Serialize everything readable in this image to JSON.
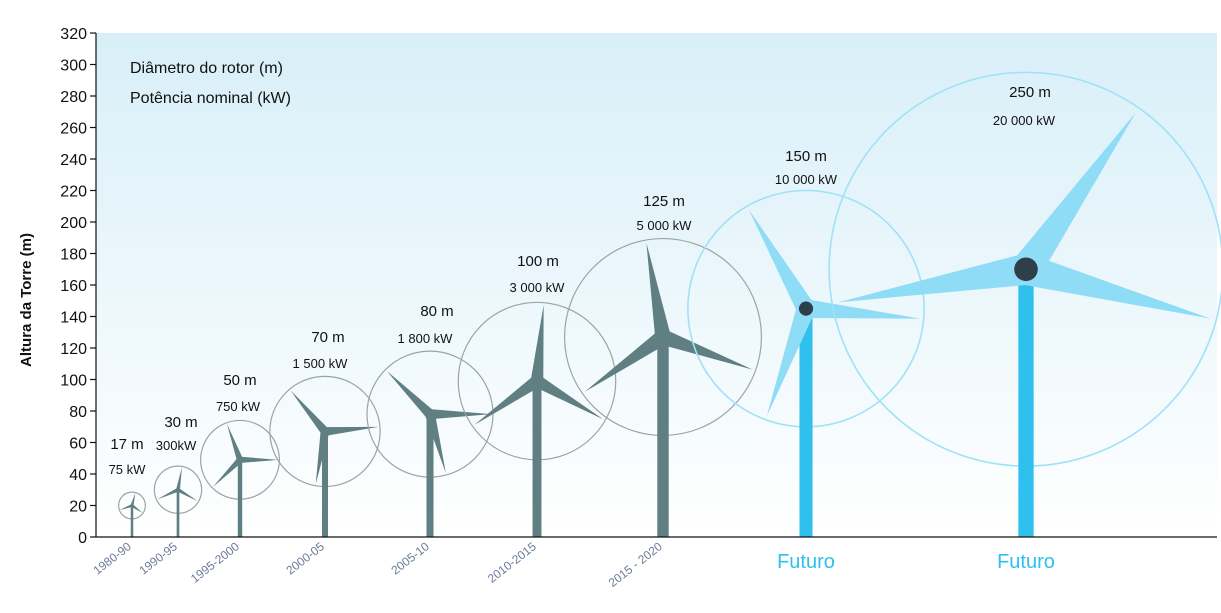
{
  "chart_data": {
    "type": "scatter",
    "legend": [
      "Diâmetro do rotor (m)",
      "Potência nominal (kW)"
    ],
    "ylabel": "Altura da Torre (m)",
    "ylim": [
      0,
      320
    ],
    "yticks": [
      0,
      20,
      40,
      60,
      80,
      100,
      120,
      140,
      160,
      180,
      200,
      220,
      240,
      260,
      280,
      300,
      320
    ],
    "categories": [
      "1980-90",
      "1990-95",
      "1995-2000",
      "2000-05",
      "2005-10",
      "2010-2015",
      "2015 - 2020",
      "Futuro",
      "Futuro"
    ],
    "points": [
      {
        "period": "1980-90",
        "hub_height": 20,
        "diameter": 17,
        "diameter_label": "17 m",
        "power_kw": 75,
        "power_label": "75 kW",
        "future": false
      },
      {
        "period": "1990-95",
        "hub_height": 30,
        "diameter": 30,
        "diameter_label": "30 m",
        "power_kw": 300,
        "power_label": "300kW",
        "future": false
      },
      {
        "period": "1995-2000",
        "hub_height": 49,
        "diameter": 50,
        "diameter_label": "50 m",
        "power_kw": 750,
        "power_label": "750 kW",
        "future": false
      },
      {
        "period": "2000-05",
        "hub_height": 67,
        "diameter": 70,
        "diameter_label": "70 m",
        "power_kw": 1500,
        "power_label": "1 500 kW",
        "future": false
      },
      {
        "period": "2005-10",
        "hub_height": 78,
        "diameter": 80,
        "diameter_label": "80 m",
        "power_kw": 1800,
        "power_label": "1 800 kW",
        "future": false
      },
      {
        "period": "2010-2015",
        "hub_height": 99,
        "diameter": 100,
        "diameter_label": "100 m",
        "power_kw": 3000,
        "power_label": "3 000 kW",
        "future": false
      },
      {
        "period": "2015 - 2020",
        "hub_height": 127,
        "diameter": 125,
        "diameter_label": "125 m",
        "power_kw": 5000,
        "power_label": "5 000 kW",
        "future": false
      },
      {
        "period": "Futuro",
        "hub_height": 145,
        "diameter": 150,
        "diameter_label": "150 m",
        "power_kw": 10000,
        "power_label": "10 000 kW",
        "future": true
      },
      {
        "period": "Futuro",
        "hub_height": 170,
        "diameter": 250,
        "diameter_label": "250 m",
        "power_kw": 20000,
        "power_label": "20 000 kW",
        "future": true
      }
    ]
  },
  "colors": {
    "current_turbine": "#5f7f83",
    "current_circle": "#9aa4a6",
    "future_turbine": "#2fc0ee",
    "future_blade": "#8fdcf6",
    "future_circle": "#9fe2f7",
    "hub_current": "#5f7f83",
    "hub_future": "#2f3f4a",
    "sky_top": "#d8eff8",
    "sky_bottom": "#ffffff"
  }
}
